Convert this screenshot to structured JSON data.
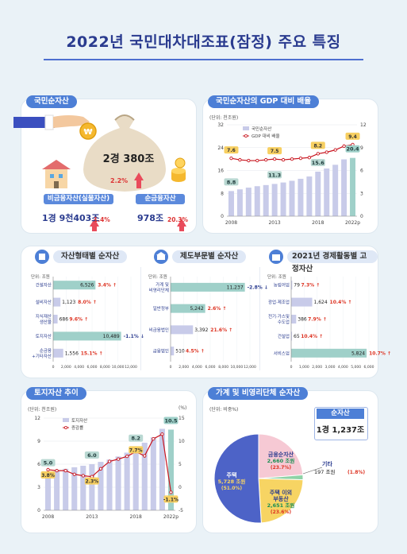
{
  "title": "2022년 국민대차대조표(잠정) 주요 특징",
  "net_worth": {
    "tag": "국민순자산",
    "total": "2경 380조",
    "total_growth": "2.2%",
    "nonfin_label": "비금융자산(실물자산)",
    "nonfin_value": "1경 9천403조",
    "nonfin_growth": "1.4%",
    "fin_label": "순금융자산",
    "fin_value": "978조",
    "fin_growth": "20.3%"
  },
  "gdp_ratio": {
    "tag": "국민순자산의 GDP 대비 배율",
    "unit": "(단위: 천조원)",
    "legend": [
      "국민순자산",
      "GDP 대비 배율"
    ]
  },
  "asset_type": {
    "tag": "자산형태별 순자산",
    "unit": "단위: 조원"
  },
  "institution": {
    "tag": "제도부문별 순자산",
    "unit": "단위: 조원"
  },
  "industry": {
    "tag": "2021년 경제활동별 고정자산",
    "unit": "단위: 조원"
  },
  "land": {
    "tag": "토지자산 추이",
    "unit": "(단위: 천조원)",
    "unit_right": "(%)",
    "legend": [
      "토지자산",
      "증감률"
    ]
  },
  "household": {
    "tag": "가계 및 비영리단체 순자산",
    "unit": "(단위: 비중%)",
    "net_label": "순자산",
    "net_value": "1경 1,237조"
  },
  "chart_data": [
    {
      "type": "bar",
      "name": "국민순자산의 GDP 대비 배율",
      "x": [
        2008,
        2009,
        2010,
        2011,
        2012,
        2013,
        2014,
        2015,
        2016,
        2017,
        2018,
        2019,
        2020,
        2021,
        2022
      ],
      "x_tick_labels": [
        "2008",
        "2013",
        "2018",
        "2022p"
      ],
      "series": [
        {
          "name": "국민순자산",
          "type": "bar",
          "values": [
            8.8,
            9.4,
            10.0,
            10.5,
            10.9,
            11.3,
            11.8,
            12.4,
            13.1,
            13.9,
            15.6,
            16.7,
            18.0,
            19.9,
            20.4
          ]
        },
        {
          "name": "GDP 대비 배율",
          "type": "line",
          "values": [
            7.6,
            7.4,
            7.3,
            7.3,
            7.4,
            7.5,
            7.4,
            7.5,
            7.6,
            7.7,
            8.2,
            8.4,
            8.7,
            9.2,
            9.4
          ]
        }
      ],
      "y_left": [
        0,
        32
      ],
      "y_left_ticks": [
        0,
        8,
        16,
        24,
        32
      ],
      "y_right": [
        0,
        12
      ],
      "y_right_ticks": [
        0,
        3,
        6,
        9,
        12
      ],
      "labels_bar": [
        {
          "i": 0,
          "v": "8.8"
        },
        {
          "i": 5,
          "v": "11.3"
        },
        {
          "i": 10,
          "v": "15.6"
        },
        {
          "i": 14,
          "v": "20.4"
        }
      ],
      "labels_line": [
        {
          "i": 0,
          "v": "7.6"
        },
        {
          "i": 5,
          "v": "7.5"
        },
        {
          "i": 10,
          "v": "8.2"
        },
        {
          "i": 14,
          "v": "9.4"
        }
      ]
    },
    {
      "type": "bar",
      "name": "자산형태별 순자산",
      "categories": [
        "건설자산",
        "설비자산",
        "지식재산\n생산물",
        "토지자산",
        "순금융\n+기타자산"
      ],
      "values": [
        6526,
        1123,
        686,
        10489,
        1556
      ],
      "growth": [
        "3.4%",
        "8.0%",
        "9.6%",
        "-1.1%",
        "15.1%"
      ],
      "value_labels": [
        "6,526",
        "1,123",
        "686",
        "10,489",
        "1,556"
      ],
      "xlim": [
        0,
        12000
      ],
      "x_ticks": [
        "0",
        "2,000",
        "4,000",
        "6,000",
        "8,000",
        "10,000",
        "12,000"
      ]
    },
    {
      "type": "bar",
      "name": "제도부문별 순자산",
      "categories": [
        "가계 및\n비영리단체",
        "일반정부",
        "비금융법인",
        "금융법인"
      ],
      "values": [
        11237,
        5242,
        3392,
        510
      ],
      "growth": [
        "-2.8%",
        "2.6%",
        "21.6%",
        "4.5%"
      ],
      "value_labels": [
        "11,237",
        "5,242",
        "3,392",
        "510"
      ],
      "xlim": [
        0,
        12000
      ],
      "x_ticks": [
        "0",
        "2,000",
        "4,000",
        "6,000",
        "8,000",
        "10,000",
        "12,000"
      ]
    },
    {
      "type": "bar",
      "name": "2021년 경제활동별 고정자산",
      "categories": [
        "농림어업",
        "광업·제조업",
        "전기·가스및\n수도업",
        "건설업",
        "서비스업"
      ],
      "values": [
        79,
        1624,
        386,
        65,
        5824
      ],
      "growth": [
        "7.3%",
        "10.4%",
        "7.9%",
        "10.4%",
        "10.7%"
      ],
      "value_labels": [
        "79",
        "1,624",
        "386",
        "65",
        "5,824"
      ],
      "xlim": [
        0,
        6000
      ],
      "x_ticks": [
        "0",
        "1,000",
        "2,000",
        "3,000",
        "4,000",
        "5,000",
        "6,000"
      ]
    },
    {
      "type": "bar",
      "name": "토지자산 추이",
      "x": [
        2008,
        2009,
        2010,
        2011,
        2012,
        2013,
        2014,
        2015,
        2016,
        2017,
        2018,
        2019,
        2020,
        2021,
        2022
      ],
      "x_tick_labels": [
        "2008",
        "2013",
        "2018",
        "2022p"
      ],
      "series": [
        {
          "name": "토지자산",
          "type": "bar",
          "values": [
            5.0,
            5.2,
            5.4,
            5.6,
            5.8,
            6.0,
            6.3,
            6.6,
            7.0,
            7.5,
            8.2,
            8.8,
            9.5,
            10.6,
            10.5
          ]
        },
        {
          "name": "증감률",
          "type": "line",
          "values": [
            3.8,
            3.6,
            3.6,
            2.8,
            2.5,
            2.3,
            4.0,
            5.6,
            6.1,
            6.7,
            7.7,
            6.8,
            10.5,
            11.5,
            -1.1
          ]
        }
      ],
      "y_left": [
        0,
        12
      ],
      "y_left_ticks": [
        0,
        3,
        6,
        9,
        12
      ],
      "y_right": [
        -5,
        15
      ],
      "y_right_ticks": [
        -5,
        0,
        5,
        10,
        15
      ],
      "labels_bar": [
        {
          "i": 0,
          "v": "5.0"
        },
        {
          "i": 5,
          "v": "6.0"
        },
        {
          "i": 10,
          "v": "8.2"
        },
        {
          "i": 14,
          "v": "10.5"
        }
      ],
      "labels_line": [
        {
          "i": 0,
          "v": "3.8%"
        },
        {
          "i": 5,
          "v": "2.3%"
        },
        {
          "i": 10,
          "v": "7.7%"
        },
        {
          "i": 14,
          "v": "-1.1%"
        }
      ]
    },
    {
      "type": "pie",
      "name": "가계 및 비영리단체 순자산",
      "slices": [
        {
          "name": "주택",
          "amount": "5,728 조원",
          "share": "(51.0%)",
          "value": 51.0
        },
        {
          "name": "금융순자산",
          "amount": "2,660 조원",
          "share": "(23.7%)",
          "value": 23.7
        },
        {
          "name": "기타",
          "amount": "197 조원",
          "share": "(1.8%)",
          "value": 1.8
        },
        {
          "name": "주택 이외\n부동산",
          "amount": "2,651 조원",
          "share": "(23.6%)",
          "value": 23.6
        }
      ]
    }
  ]
}
